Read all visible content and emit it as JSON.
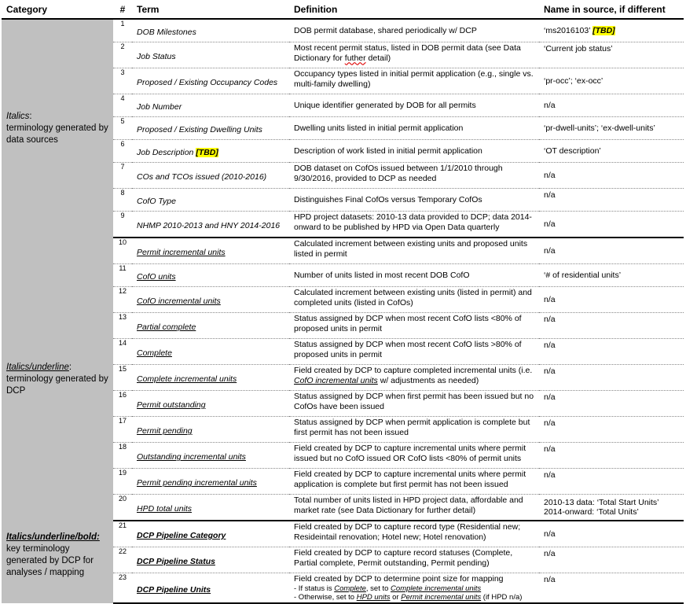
{
  "headers": {
    "category": "Category",
    "num": "#",
    "term": "Term",
    "definition": "Definition",
    "source": "Name in source, if different"
  },
  "categories": [
    {
      "title": "Italics",
      "title_suffix": ":",
      "desc": "terminology generated by data sources"
    },
    {
      "title": "Italics/underline",
      "title_suffix": ":",
      "desc": "terminology generated by DCP"
    },
    {
      "title": "Italics/underline/bold:",
      "title_suffix": "",
      "desc": "key terminology generated by DCP for analyses / mapping"
    }
  ],
  "tbd": "[TBD]",
  "rows": [
    {
      "num": "1",
      "term": "DOB Milestones",
      "def": "DOB permit database, shared periodically w/ DCP",
      "src": "‘ms2016103’ "
    },
    {
      "num": "2",
      "term": "Job Status",
      "def_a": "Most recent permit status, listed in DOB permit data (see Data Dictionary for ",
      "def_spell": "futher",
      "def_b": " detail)",
      "src": "‘Current job status’"
    },
    {
      "num": "3",
      "term": "Proposed / Existing Occupancy Codes",
      "def": "Occupancy types listed in initial permit application (e.g., single vs. multi-family dwelling)",
      "src": "‘pr-occ’; ‘ex-occ’"
    },
    {
      "num": "4",
      "term": "Job Number",
      "def": "Unique identifier generated by DOB for all permits",
      "src": "n/a"
    },
    {
      "num": "5",
      "term": "Proposed / Existing Dwelling Units",
      "def": "Dwelling units listed in initial permit application",
      "src": "‘pr-dwell-units’; ‘ex-dwell-units’"
    },
    {
      "num": "6",
      "term": "Job Description ",
      "def": "Description of work listed in initial permit application",
      "src": "‘OT description’"
    },
    {
      "num": "7",
      "term": "COs and TCOs issued (2010-2016)",
      "def": "DOB dataset on CofOs issued between 1/1/2010 through 9/30/2016, provided to DCP as needed",
      "src": "n/a"
    },
    {
      "num": "8",
      "term": "CofO Type",
      "def": "Distinguishes Final CofOs versus Temporary CofOs",
      "src": "n/a"
    },
    {
      "num": "9",
      "term": "NHMP 2010-2013 and HNY 2014-2016",
      "def": "HPD project datasets: 2010-13 data provided to DCP; data 2014-onward to be published by HPD via Open Data quarterly",
      "src": "n/a"
    },
    {
      "num": "10",
      "term": "Permit incremental units",
      "def": "Calculated increment between existing units and proposed units listed in permit",
      "src": "n/a"
    },
    {
      "num": "11",
      "term": "CofO units",
      "def": "Number of units listed in most recent DOB CofO",
      "src": "‘# of residential units’"
    },
    {
      "num": "12",
      "term": "CofO incremental units",
      "def": "Calculated increment between existing units (listed in permit) and completed units (listed in CofOs)",
      "src": "n/a"
    },
    {
      "num": "13",
      "term": "Partial complete",
      "def": "Status assigned by DCP when most recent CofO lists <80% of proposed units in permit",
      "src": "n/a"
    },
    {
      "num": "14",
      "term": "Complete",
      "def": "Status assigned by DCP when most recent CofO lists >80% of proposed units in permit",
      "src": "n/a"
    },
    {
      "num": "15",
      "term": "Complete incremental units",
      "def_a": "Field created by DCP to capture completed incremental units (i.e. ",
      "def_link": "CofO incremental units",
      "def_b": " w/ adjustments as needed)",
      "src": "n/a"
    },
    {
      "num": "16",
      "term": "Permit outstanding",
      "def": "Status assigned by DCP when first permit has been issued but no CofOs have been issued",
      "src": "n/a"
    },
    {
      "num": "17",
      "term": "Permit pending",
      "def": "Status assigned by DCP when permit application is complete but first permit has not been issued",
      "src": "n/a"
    },
    {
      "num": "18",
      "term": "Outstanding incremental units",
      "def": "Field created by DCP to capture incremental units where permit issued but no CofO issued OR CofO lists <80% of permit units",
      "src": "n/a"
    },
    {
      "num": "19",
      "term": "Permit pending incremental units",
      "def": "Field created by DCP to capture incremental units where permit application is complete but first permit has not been issued",
      "src": "n/a"
    },
    {
      "num": "20",
      "term": "HPD total units",
      "def": "Total number of units listed in HPD project data, affordable and market rate (see Data Dictionary for further detail)",
      "src_a": "2010-13 data: ‘Total Start Units’",
      "src_b": "2014-onward: ‘Total Units’"
    },
    {
      "num": "21",
      "term": "DCP Pipeline Category",
      "def": "Field created by DCP to capture record type (Residential new; Resideintail renovation; Hotel new; Hotel renovation)",
      "src": "n/a"
    },
    {
      "num": "22",
      "term": "DCP Pipeline Status",
      "def": "Field created by DCP to capture record statuses (Complete, Partial complete, Permit outstanding, Permit pending)",
      "src": "n/a"
    },
    {
      "num": "23",
      "term": "DCP Pipeline Units",
      "def": "Field created by DCP to determine point size for mapping",
      "sub1_a": " - If status is ",
      "sub1_link": "Complete",
      "sub1_b": ", set to ",
      "sub1_link2": "Complete incremental units",
      "sub2_a": " - Otherwise, set to ",
      "sub2_link": "HPD units",
      "sub2_b": " or ",
      "sub2_link2": "Permit incremental units",
      "sub2_c": " (if HPD n/a)",
      "src": "n/a"
    }
  ]
}
